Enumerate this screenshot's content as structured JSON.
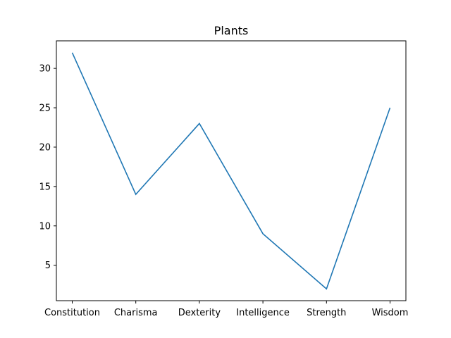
{
  "chart_data": {
    "type": "line",
    "title": "Plants",
    "xlabel": "",
    "ylabel": "",
    "categories": [
      "Constitution",
      "Charisma",
      "Dexterity",
      "Intelligence",
      "Strength",
      "Wisdom"
    ],
    "series": [
      {
        "values": [
          32,
          14,
          23,
          9,
          2,
          25
        ],
        "color": "#1f77b4"
      }
    ],
    "yticks": [
      5,
      10,
      15,
      20,
      25,
      30
    ],
    "ylim": [
      0.5,
      33.5
    ],
    "grid": false,
    "legend": "none"
  }
}
